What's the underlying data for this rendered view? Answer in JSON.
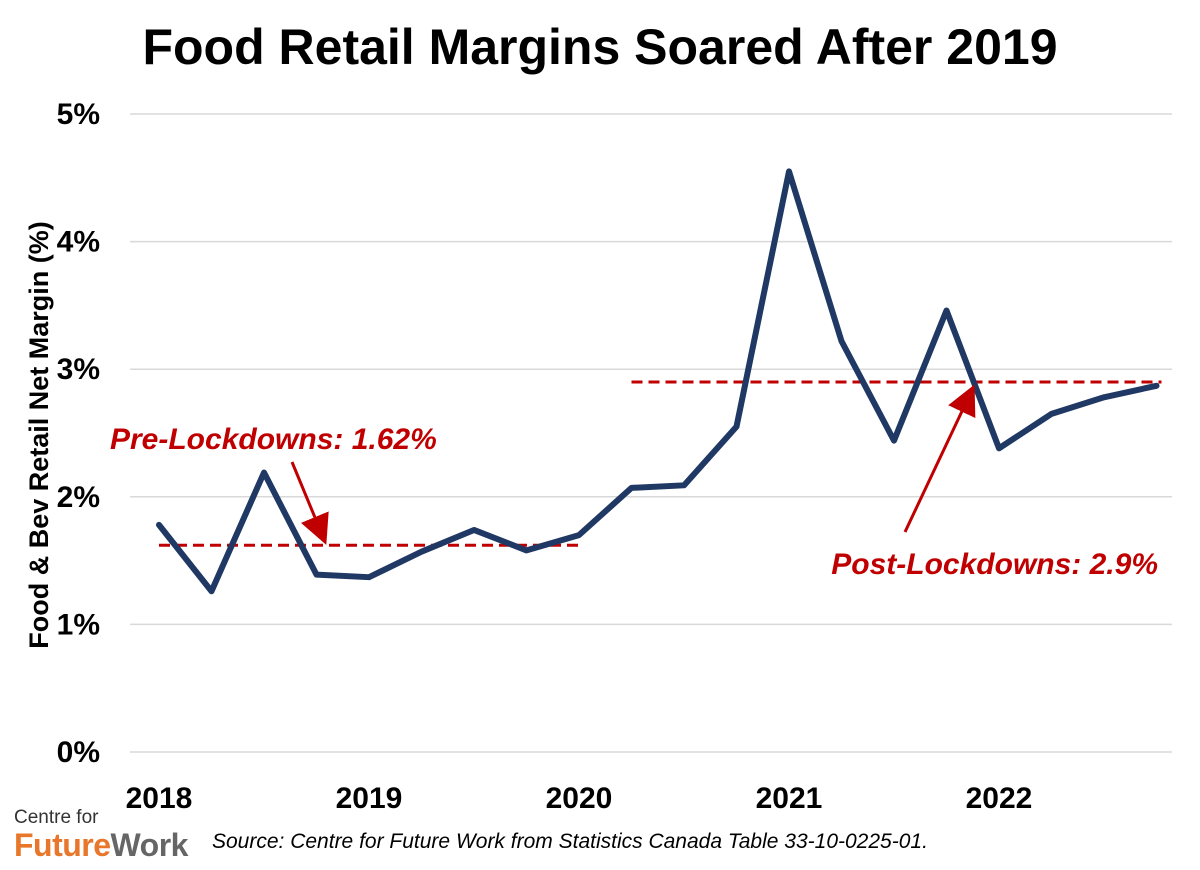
{
  "chart_data": {
    "type": "line",
    "title": "Food Retail Margins Soared After 2019",
    "ylabel": "Food & Bev Retail Net Margin (%)",
    "xlabel": "",
    "ylim": [
      0,
      5
    ],
    "xlim": [
      2018,
      2023
    ],
    "yticks": [
      "0%",
      "1%",
      "2%",
      "3%",
      "4%",
      "5%"
    ],
    "xticks": [
      "2018",
      "2019",
      "2020",
      "2021",
      "2022"
    ],
    "grid": "horizontal",
    "series": [
      {
        "color": "#1f3864",
        "x": [
          2018.0,
          2018.25,
          2018.5,
          2018.75,
          2019.0,
          2019.25,
          2019.5,
          2019.75,
          2020.0,
          2020.25,
          2020.5,
          2020.75,
          2021.0,
          2021.25,
          2021.5,
          2021.75,
          2022.0,
          2022.25,
          2022.5,
          2022.75
        ],
        "values": [
          1.78,
          1.26,
          2.19,
          1.39,
          1.37,
          1.57,
          1.74,
          1.58,
          1.7,
          2.07,
          2.09,
          2.55,
          4.55,
          3.22,
          2.44,
          3.46,
          2.38,
          2.65,
          2.78,
          2.87
        ]
      }
    ],
    "reference_lines": [
      {
        "label": "Pre-Lockdowns: 1.62%",
        "value": 1.62,
        "from": 2018.0,
        "to": 2020.0,
        "color": "#c00000"
      },
      {
        "label": "Post-Lockdowns: 2.9%",
        "value": 2.9,
        "from": 2020.25,
        "to": 2022.75,
        "color": "#c00000"
      }
    ]
  },
  "footer": {
    "source": "Source: Centre for Future Work from Statistics Canada Table 33-10-0225-01.",
    "logo_top": "Centre for",
    "logo_bottom_a": "Future",
    "logo_bottom_b": "Work"
  }
}
